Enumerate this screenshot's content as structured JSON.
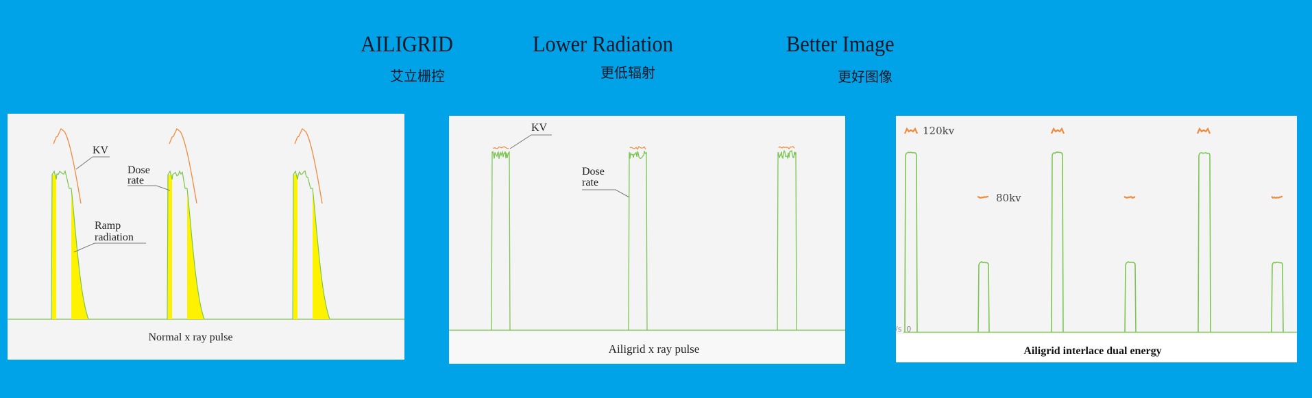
{
  "header": {
    "items": [
      {
        "title": "AILIGRID",
        "subtitle": "艾立栅控"
      },
      {
        "title": "Lower Radiation",
        "subtitle": "更低辐射"
      },
      {
        "title": "Better Image",
        "subtitle": "更好图像"
      }
    ]
  },
  "panels": [
    {
      "caption": "Normal x ray pulse",
      "labels": {
        "kv": "KV",
        "dose_rate_1": "Dose",
        "dose_rate_2": "rate",
        "ramp_1": "Ramp",
        "ramp_2": "radiation"
      }
    },
    {
      "caption": "Ailigrid x ray pulse",
      "labels": {
        "kv": "KV",
        "dose_rate_1": "Dose",
        "dose_rate_2": "rate"
      }
    },
    {
      "caption": "Ailigrid interlace dual energy",
      "labels": {
        "high_kv": "120kv",
        "low_kv": "80kv",
        "axis": "/s  0"
      }
    }
  ],
  "colors": {
    "background": "#00a2e8",
    "dose_rate": "#7cc552",
    "kv": "#f08a3c",
    "ramp_radiation": "#fff200"
  }
}
